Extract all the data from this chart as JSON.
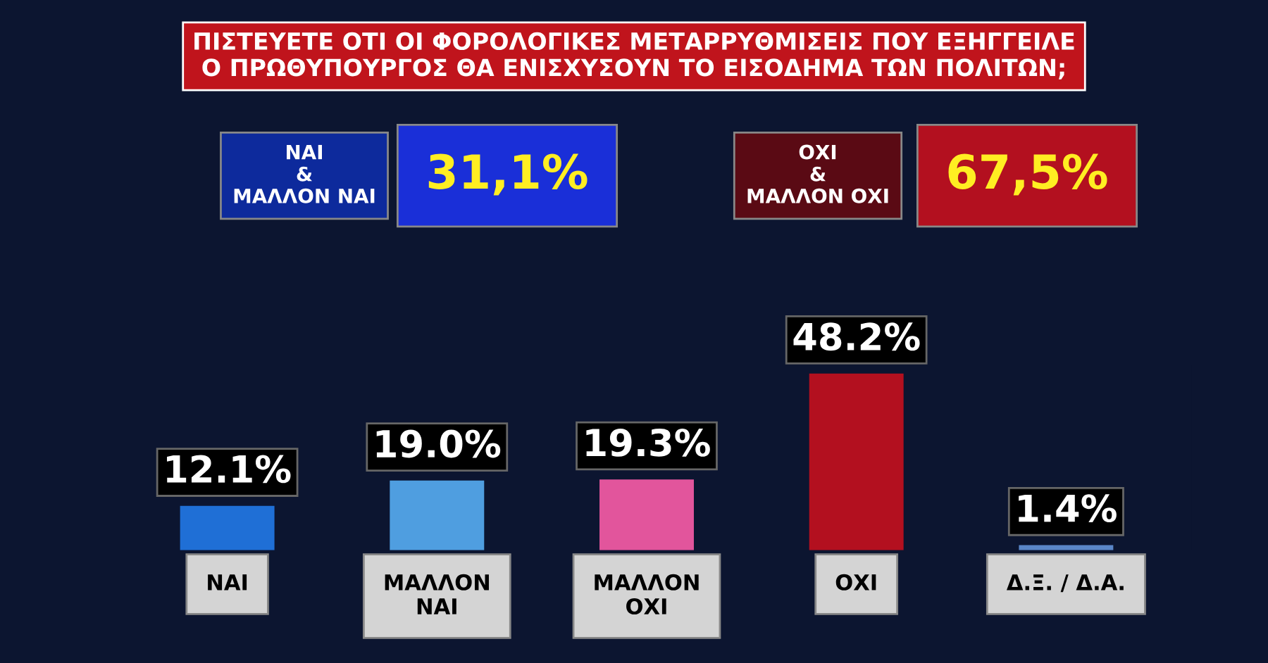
{
  "chart_data": {
    "type": "bar",
    "title": "ΠΙΣΤΕΥΕΤΕ ΟΤΙ ΟΙ ΦΟΡΟΛΟΓΙΚΕΣ ΜΕΤΑΡΡΥΘΜΙΣΕΙΣ ΠΟΥ ΕΞΗΓΓΕΙΛΕ\nΟ ΠΡΩΘΥΠΟΥΡΓΟΣ ΘΑ ΕΝΙΣΧΥΣΟΥΝ ΤΟ ΕΙΣΟΔΗΜΑ ΤΩΝ ΠΟΛΙΤΩΝ;",
    "annotations": [
      "ΝΑΙ\n&\nΜΑΛΛΟΝ ΝΑΙ",
      "31,1%",
      "ΟΧΙ\n&\nΜΑΛΛΟΝ ΟΧΙ",
      "67,5%"
    ],
    "categories": [
      "ΝΑΙ",
      "ΜΑΛΛΟΝ\nΝΑΙ",
      "ΜΑΛΛΟΝ\nΟΧΙ",
      "ΟΧΙ",
      "Δ.Ξ. / Δ.Α."
    ],
    "values": [
      12.1,
      19.0,
      19.3,
      48.2,
      1.4
    ],
    "colors": [
      "#1f6fd6",
      "#4f9ee0",
      "#e2559c",
      "#b3101f",
      "#5a86c8"
    ],
    "value_labels": [
      "12.1%",
      "19.0%",
      "19.3%",
      "48.2%",
      "1.4%"
    ],
    "grid": false,
    "legend": false
  }
}
